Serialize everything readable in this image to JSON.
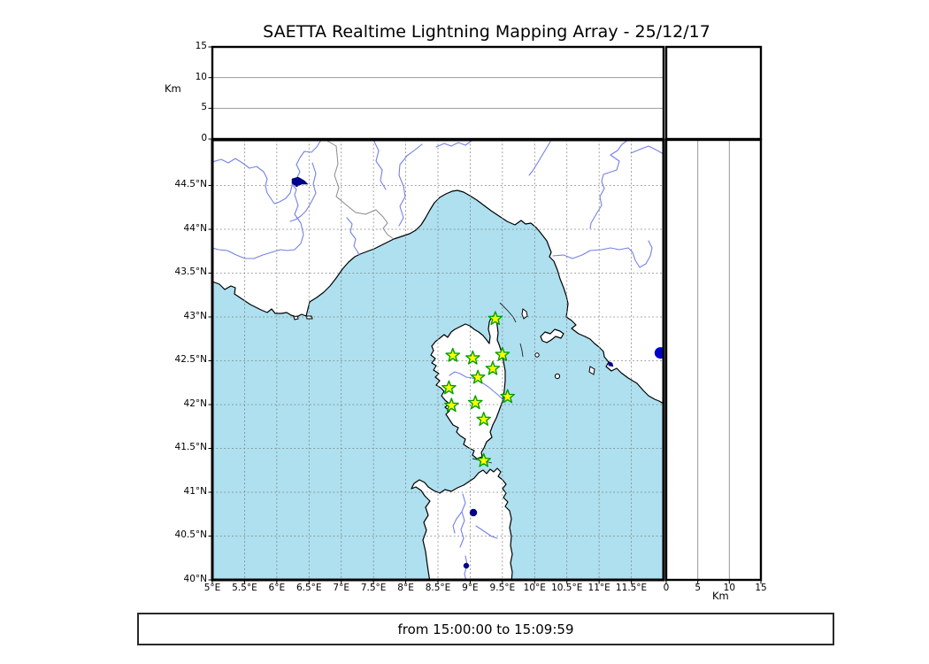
{
  "title": "SAETTA Realtime Lightning Mapping Array - 25/12/17",
  "time_range": {
    "text": "from 15:00:00 to 15:09:59"
  },
  "colors": {
    "sea": "#aee0ef",
    "land": "#ffffff",
    "coastline": "#000000",
    "river": "#7580e8",
    "lake": "#000090",
    "country_border": "#8a8a8a",
    "map_grid": "#808080",
    "panel_grid": "#999999",
    "star_fill": "#ffff00",
    "star_edge": "#00a000",
    "source_dot": "#0000cc"
  },
  "altitude_axis": {
    "label": "Km",
    "tick_values": [
      0,
      5,
      10,
      15
    ],
    "tick_labels": [
      "0",
      "5",
      "10",
      "15"
    ],
    "range": [
      0,
      15
    ],
    "grid_values": [
      5,
      10
    ]
  },
  "map_axes": {
    "lon_range": [
      5.0,
      12.0
    ],
    "lat_range": [
      40.0,
      45.02
    ],
    "lon_tick_values": [
      5,
      5.5,
      6,
      6.5,
      7,
      7.5,
      8,
      8.5,
      9,
      9.5,
      10,
      10.5,
      11,
      11.5
    ],
    "lon_tick_labels": [
      "5°E",
      "5.5°E",
      "6°E",
      "6.5°E",
      "7°E",
      "7.5°E",
      "8°E",
      "8.5°E",
      "9°E",
      "9.5°E",
      "10°E",
      "10.5°E",
      "11°E",
      "11.5°E"
    ],
    "lat_tick_values": [
      40,
      40.5,
      41,
      41.5,
      42,
      42.5,
      43,
      43.5,
      44,
      44.5
    ],
    "lat_tick_labels": [
      "40°N",
      "40.5°N",
      "41°N",
      "41.5°N",
      "42°N",
      "42.5°N",
      "43°N",
      "43.5°N",
      "44°N",
      "44.5°N"
    ]
  },
  "chart_data": {
    "type": "scatter",
    "title": "SAETTA Realtime Lightning Mapping Array - 25/12/17",
    "xlabel": "",
    "ylabel": "Km",
    "map_xlim": [
      5.0,
      12.0
    ],
    "map_ylim": [
      40.0,
      45.02
    ],
    "altitude_ylim_km": [
      0,
      15
    ],
    "grid": true,
    "legend": "none",
    "series": [
      {
        "name": "lma_station_sites",
        "marker": "star",
        "fill": "#ffff00",
        "edge": "#00a000",
        "points_lon_lat": [
          [
            9.39,
            42.98
          ],
          [
            8.73,
            42.56
          ],
          [
            9.04,
            42.53
          ],
          [
            9.5,
            42.57
          ],
          [
            9.35,
            42.41
          ],
          [
            9.12,
            42.31
          ],
          [
            8.67,
            42.19
          ],
          [
            9.58,
            42.09
          ],
          [
            9.08,
            42.02
          ],
          [
            8.71,
            41.99
          ],
          [
            9.21,
            41.83
          ],
          [
            9.21,
            41.36
          ]
        ]
      },
      {
        "name": "lightning_source",
        "marker": "circle",
        "fill": "#0000cc",
        "radius_px": 6.5,
        "points_lon_lat": [
          [
            11.95,
            42.59
          ]
        ]
      }
    ]
  }
}
